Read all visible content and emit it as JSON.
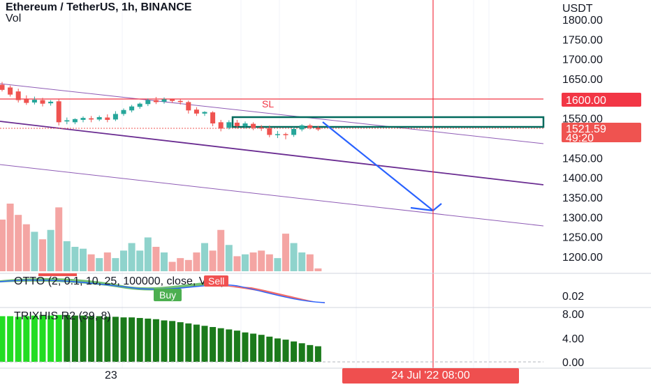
{
  "header": {
    "symbol_line": "Ethereum / TetherUS, 1h, BINANCE",
    "volume_label": "Vol"
  },
  "price_axis": {
    "currency": "USDT",
    "ticks": [
      "1800.00",
      "1750.00",
      "1700.00",
      "1650.00",
      "1550.00",
      "1450.00",
      "1400.00",
      "1350.00",
      "1300.00",
      "1250.00",
      "1200.00"
    ],
    "sl_tag": "1600.00",
    "current_price": "1521.59",
    "countdown": "49:20"
  },
  "annotations": {
    "sl_label": "SL"
  },
  "indicators": {
    "otto_label": "OTTO (2, 0.1, 10, 25, 100000, close, VAR)",
    "otto_axis": "0.02",
    "buy_badge": "Buy",
    "sell_badge": "Sell",
    "trix_label": "TRIXHIS R2 (39, 8)",
    "trix_ticks": [
      "8.00",
      "4.00",
      "0.00"
    ]
  },
  "time_axis": {
    "day_label": "23",
    "cursor_time": "24 Jul '22   08:00"
  },
  "colors": {
    "up": "#26a69a",
    "down": "#ef5350",
    "sl_line": "#f23645",
    "channel": "#7b3fa0",
    "arrow": "#2962ff",
    "box": "#00695c",
    "trix_bright": "#22dd22",
    "trix_dark": "#1b7a1b"
  },
  "chart_data": {
    "type": "candlestick",
    "timeframe": "1h",
    "ylim": [
      1170,
      1830
    ],
    "candles": [
      {
        "o": 1635,
        "h": 1642,
        "c": 1622,
        "l": 1618
      },
      {
        "o": 1628,
        "h": 1633,
        "c": 1610,
        "l": 1605
      },
      {
        "o": 1618,
        "h": 1625,
        "c": 1596,
        "l": 1590
      },
      {
        "o": 1598,
        "h": 1608,
        "c": 1589,
        "l": 1584
      },
      {
        "o": 1590,
        "h": 1605,
        "c": 1597,
        "l": 1585
      },
      {
        "o": 1596,
        "h": 1602,
        "c": 1587,
        "l": 1580
      },
      {
        "o": 1588,
        "h": 1596,
        "c": 1592,
        "l": 1582
      },
      {
        "o": 1593,
        "h": 1600,
        "c": 1540,
        "l": 1532
      },
      {
        "o": 1542,
        "h": 1552,
        "c": 1545,
        "l": 1535
      },
      {
        "o": 1540,
        "h": 1550,
        "c": 1548,
        "l": 1535
      },
      {
        "o": 1546,
        "h": 1555,
        "c": 1551,
        "l": 1540
      },
      {
        "o": 1550,
        "h": 1556,
        "c": 1547,
        "l": 1540
      },
      {
        "o": 1547,
        "h": 1557,
        "c": 1553,
        "l": 1543
      },
      {
        "o": 1552,
        "h": 1560,
        "c": 1546,
        "l": 1540
      },
      {
        "o": 1547,
        "h": 1568,
        "c": 1561,
        "l": 1543
      },
      {
        "o": 1561,
        "h": 1575,
        "c": 1571,
        "l": 1556
      },
      {
        "o": 1570,
        "h": 1584,
        "c": 1580,
        "l": 1565
      },
      {
        "o": 1579,
        "h": 1590,
        "c": 1587,
        "l": 1574
      },
      {
        "o": 1586,
        "h": 1600,
        "c": 1596,
        "l": 1581
      },
      {
        "o": 1596,
        "h": 1604,
        "c": 1591,
        "l": 1586
      },
      {
        "o": 1592,
        "h": 1603,
        "c": 1598,
        "l": 1587
      },
      {
        "o": 1598,
        "h": 1600,
        "c": 1594,
        "l": 1589
      },
      {
        "o": 1594,
        "h": 1598,
        "c": 1591,
        "l": 1585
      },
      {
        "o": 1591,
        "h": 1595,
        "c": 1570,
        "l": 1562
      },
      {
        "o": 1572,
        "h": 1578,
        "c": 1562,
        "l": 1556
      },
      {
        "o": 1562,
        "h": 1568,
        "c": 1566,
        "l": 1556
      },
      {
        "o": 1565,
        "h": 1568,
        "c": 1537,
        "l": 1530
      },
      {
        "o": 1540,
        "h": 1546,
        "c": 1524,
        "l": 1517
      },
      {
        "o": 1526,
        "h": 1545,
        "c": 1540,
        "l": 1522
      },
      {
        "o": 1539,
        "h": 1546,
        "c": 1530,
        "l": 1524
      },
      {
        "o": 1530,
        "h": 1542,
        "c": 1537,
        "l": 1524
      },
      {
        "o": 1536,
        "h": 1540,
        "c": 1526,
        "l": 1520
      },
      {
        "o": 1527,
        "h": 1533,
        "c": 1524,
        "l": 1518
      },
      {
        "o": 1525,
        "h": 1532,
        "c": 1508,
        "l": 1502
      },
      {
        "o": 1510,
        "h": 1518,
        "c": 1510,
        "l": 1500
      },
      {
        "o": 1510,
        "h": 1514,
        "c": 1508,
        "l": 1497
      },
      {
        "o": 1508,
        "h": 1528,
        "c": 1523,
        "l": 1503
      },
      {
        "o": 1522,
        "h": 1535,
        "c": 1532,
        "l": 1517
      },
      {
        "o": 1532,
        "h": 1536,
        "c": 1526,
        "l": 1522
      },
      {
        "o": 1526,
        "h": 1531,
        "c": 1522,
        "l": 1518
      }
    ],
    "volume": [
      55,
      72,
      60,
      50,
      42,
      34,
      44,
      68,
      32,
      26,
      24,
      18,
      14,
      20,
      14,
      22,
      30,
      22,
      36,
      26,
      20,
      10,
      14,
      12,
      20,
      30,
      22,
      44,
      28,
      16,
      18,
      20,
      22,
      18,
      14,
      40,
      30,
      20,
      18,
      3
    ],
    "sl_level": 1600,
    "trix_range": [
      0,
      8
    ],
    "trix_bars": [
      7.6,
      7.6,
      7.5,
      7.6,
      7.7,
      7.8,
      7.7,
      7.8,
      7.8,
      7.7,
      7.7,
      7.6,
      7.6,
      7.5,
      7.5,
      7.4,
      7.4,
      7.3,
      7.2,
      7.1,
      6.9,
      6.8,
      6.6,
      6.4,
      6.2,
      6.0,
      5.8,
      5.6,
      5.4,
      5.2,
      4.9,
      4.7,
      4.5,
      4.2,
      3.9,
      3.7,
      3.4,
      3.1,
      2.8,
      2.6
    ],
    "trix_bright_count": 8,
    "otto_axis_value": 0.02
  }
}
